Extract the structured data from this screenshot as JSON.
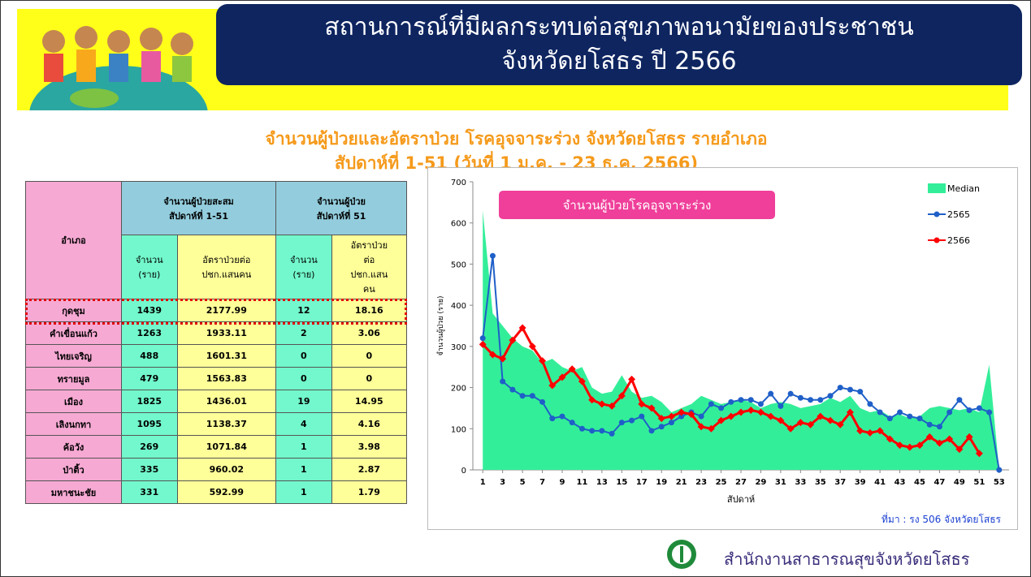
{
  "header": {
    "title": [
      "สถานการณ์ที่มีผลกระทบต่อสุขภาพอนามัยของประชาชน",
      "จังหวัดยโสธร ปี 2566"
    ],
    "subtitle": [
      "จำนวนผู้ป่วยและอัตราป่วย โรคอุจจาระร่วง จังหวัดยโสธร รายอำเภอ",
      "สัปดาห์ที่ 1-51 (วันที่ 1 ม.ค. - 23 ธ.ค. 2566)"
    ]
  },
  "table": {
    "group_headers": [
      "อำเภอ",
      "จำนวนผู้ป่วยสะสม\nสัปดาห์ที่ 1-51",
      "จำนวนผู้ป่วย\nสัปดาห์ที่ 51"
    ],
    "sub_headers": [
      "จำนวน\n(ราย)",
      "อัตราป่วยต่อ\nปชก.แสนคน",
      "จำนวน\n(ราย)",
      "อัตราป่วย\nต่อ\nปชก.แสน\nคน"
    ],
    "rows": [
      [
        "กุดชุม",
        "1439",
        "2177.99",
        "12",
        "18.16"
      ],
      [
        "คำเขื่อนแก้ว",
        "1263",
        "1933.11",
        "2",
        "3.06"
      ],
      [
        "ไทยเจริญ",
        "488",
        "1601.31",
        "0",
        "0"
      ],
      [
        "ทรายมูล",
        "479",
        "1563.83",
        "0",
        "0"
      ],
      [
        "เมือง",
        "1825",
        "1436.01",
        "19",
        "14.95"
      ],
      [
        "เลิงนกทา",
        "1095",
        "1138.37",
        "4",
        "4.16"
      ],
      [
        "ค้อวัง",
        "269",
        "1071.84",
        "1",
        "3.98"
      ],
      [
        "ป่าติ้ว",
        "335",
        "960.02",
        "1",
        "2.87"
      ],
      [
        "มหาชนะชัย",
        "331",
        "592.99",
        "1",
        "1.79"
      ]
    ]
  },
  "chart_data": {
    "type": "line",
    "title": "จำนวนผู้ป่วยโรคอุจจาระร่วง",
    "x_label": "สัปดาห์",
    "y_label": "จำนวนผู้ป่วย (ราย)",
    "source": "ที่มา : รง 506 จังหวัดยโสธร",
    "x": [
      1,
      2,
      3,
      4,
      5,
      6,
      7,
      8,
      9,
      10,
      11,
      12,
      13,
      14,
      15,
      16,
      17,
      18,
      19,
      20,
      21,
      22,
      23,
      24,
      25,
      26,
      27,
      28,
      29,
      30,
      31,
      32,
      33,
      34,
      35,
      36,
      37,
      38,
      39,
      40,
      41,
      42,
      43,
      44,
      45,
      46,
      47,
      48,
      49,
      50,
      51,
      52,
      53
    ],
    "xlim": [
      0,
      54
    ],
    "xticks": [
      1,
      3,
      5,
      7,
      9,
      11,
      13,
      15,
      17,
      19,
      21,
      23,
      25,
      27,
      29,
      31,
      33,
      35,
      37,
      39,
      41,
      43,
      45,
      47,
      49,
      51,
      53
    ],
    "ylim": [
      0,
      700
    ],
    "yticks": [
      0,
      100,
      200,
      300,
      400,
      500,
      600,
      700
    ],
    "legend": "upper right",
    "series": [
      {
        "name": "Median",
        "kind": "area",
        "color": "#33ee99",
        "values": [
          630,
          380,
          350,
          320,
          300,
          290,
          260,
          270,
          250,
          240,
          250,
          200,
          185,
          190,
          230,
          190,
          175,
          180,
          165,
          140,
          150,
          160,
          180,
          170,
          160,
          165,
          170,
          165,
          150,
          160,
          165,
          160,
          150,
          155,
          160,
          175,
          165,
          180,
          150,
          140,
          145,
          130,
          135,
          125,
          130,
          150,
          155,
          150,
          145,
          150,
          140,
          255,
          0
        ]
      },
      {
        "name": "2565",
        "kind": "line",
        "color": "#1f5fc8",
        "values": [
          320,
          520,
          215,
          195,
          180,
          180,
          165,
          125,
          130,
          115,
          100,
          95,
          95,
          88,
          115,
          120,
          130,
          95,
          105,
          115,
          130,
          140,
          130,
          160,
          150,
          165,
          170,
          170,
          160,
          185,
          155,
          185,
          175,
          170,
          170,
          180,
          200,
          195,
          190,
          160,
          140,
          125,
          140,
          130,
          125,
          110,
          105,
          140,
          170,
          145,
          150,
          140,
          0
        ]
      },
      {
        "name": "2566",
        "kind": "line",
        "color": "#ff0000",
        "values": [
          305,
          280,
          270,
          315,
          345,
          300,
          265,
          205,
          225,
          245,
          215,
          170,
          160,
          155,
          180,
          220,
          160,
          150,
          125,
          130,
          140,
          135,
          105,
          100,
          120,
          130,
          140,
          145,
          140,
          130,
          120,
          100,
          115,
          110,
          130,
          120,
          110,
          140,
          95,
          90,
          95,
          75,
          60,
          55,
          60,
          80,
          65,
          75,
          50,
          80,
          40,
          null,
          null
        ]
      }
    ]
  },
  "footer": "สำนักงานสาธารณสุขจังหวัดยโสธร"
}
